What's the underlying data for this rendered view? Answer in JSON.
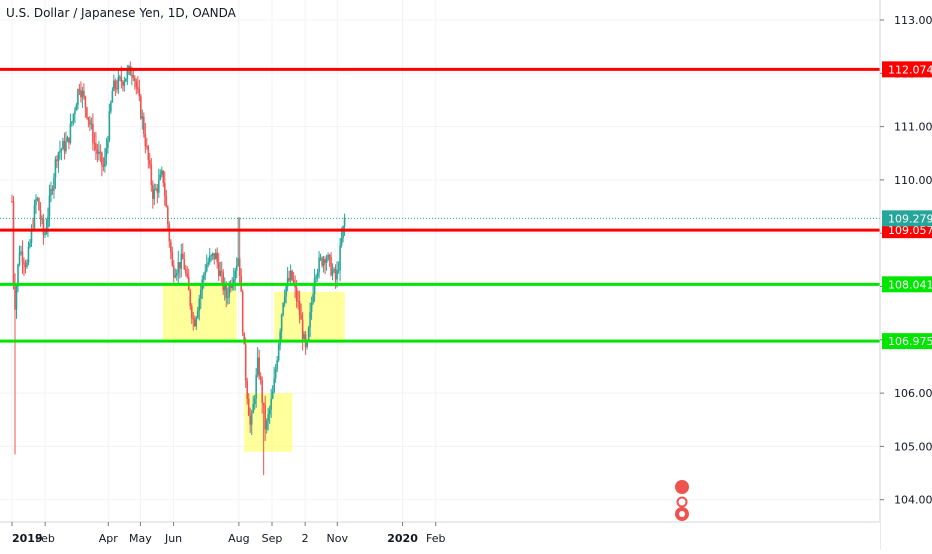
{
  "header": {
    "title": "U.S. Dollar / Japanese Yen, 1D, OANDA"
  },
  "chart_data": {
    "type": "candlestick",
    "symbol": "USDJPY",
    "timeframe": "1D",
    "source": "OANDA",
    "y_ticks": [
      "113.000",
      "112.000",
      "111.000",
      "110.000",
      "109.000",
      "108.000",
      "107.000",
      "106.000",
      "105.000",
      "104.000"
    ],
    "x_ticks": [
      "2019",
      "Feb",
      "Apr",
      "May",
      "Jun",
      "Aug",
      "Sep",
      "2",
      "Nov",
      "2020",
      "Feb"
    ],
    "horizontal_levels": [
      {
        "label": "112.074",
        "value": 112.074,
        "color": "#ff0000"
      },
      {
        "label": "109.057",
        "value": 109.057,
        "color": "#ff0000"
      },
      {
        "label": "108.041",
        "value": 108.041,
        "color": "#00e600"
      },
      {
        "label": "106.975",
        "value": 106.975,
        "color": "#00e600"
      }
    ],
    "last_price": {
      "label": "109.279",
      "value": 109.279,
      "color": "#26a69a"
    },
    "zones": [
      {
        "start": "2019-05-22",
        "end": "2019-07-30",
        "low": 106.975,
        "high": 108.041,
        "color": "#ffff66"
      },
      {
        "start": "2019-08-06",
        "end": "2019-09-20",
        "low": 104.9,
        "high": 106.0,
        "color": "#ffff66"
      },
      {
        "start": "2019-09-03",
        "end": "2019-11-08",
        "low": 106.975,
        "high": 107.9,
        "color": "#ffff66"
      }
    ],
    "candle_colors": {
      "up": "#26a69a",
      "down": "#ef5350"
    },
    "price_path": [
      [
        "2019-01-01",
        109.6
      ],
      [
        "2019-01-03",
        107.5
      ],
      [
        "2019-01-08",
        108.7
      ],
      [
        "2019-01-15",
        108.4
      ],
      [
        "2019-01-24",
        109.7
      ],
      [
        "2019-01-31",
        108.9
      ],
      [
        "2019-02-12",
        110.5
      ],
      [
        "2019-02-22",
        110.7
      ],
      [
        "2019-03-05",
        111.8
      ],
      [
        "2019-03-12",
        111.3
      ],
      [
        "2019-03-20",
        110.6
      ],
      [
        "2019-03-28",
        110.2
      ],
      [
        "2019-04-05",
        111.7
      ],
      [
        "2019-04-15",
        111.9
      ],
      [
        "2019-04-24",
        112.1
      ],
      [
        "2019-05-03",
        111.1
      ],
      [
        "2019-05-13",
        109.7
      ],
      [
        "2019-05-22",
        110.1
      ],
      [
        "2019-05-31",
        108.3
      ],
      [
        "2019-06-10",
        108.5
      ],
      [
        "2019-06-20",
        107.3
      ],
      [
        "2019-07-01",
        108.4
      ],
      [
        "2019-07-10",
        108.6
      ],
      [
        "2019-07-20",
        107.8
      ],
      [
        "2019-08-01",
        108.6
      ],
      [
        "2019-08-07",
        106.4
      ],
      [
        "2019-08-12",
        105.3
      ],
      [
        "2019-08-19",
        106.6
      ],
      [
        "2019-08-26",
        105.3
      ],
      [
        "2019-09-02",
        106.0
      ],
      [
        "2019-09-12",
        107.9
      ],
      [
        "2019-09-19",
        108.2
      ],
      [
        "2019-09-26",
        107.6
      ],
      [
        "2019-10-03",
        106.7
      ],
      [
        "2019-10-11",
        108.3
      ],
      [
        "2019-10-21",
        108.6
      ],
      [
        "2019-10-31",
        108.1
      ],
      [
        "2019-11-06",
        109.0
      ],
      [
        "2019-11-08",
        109.3
      ]
    ]
  }
}
